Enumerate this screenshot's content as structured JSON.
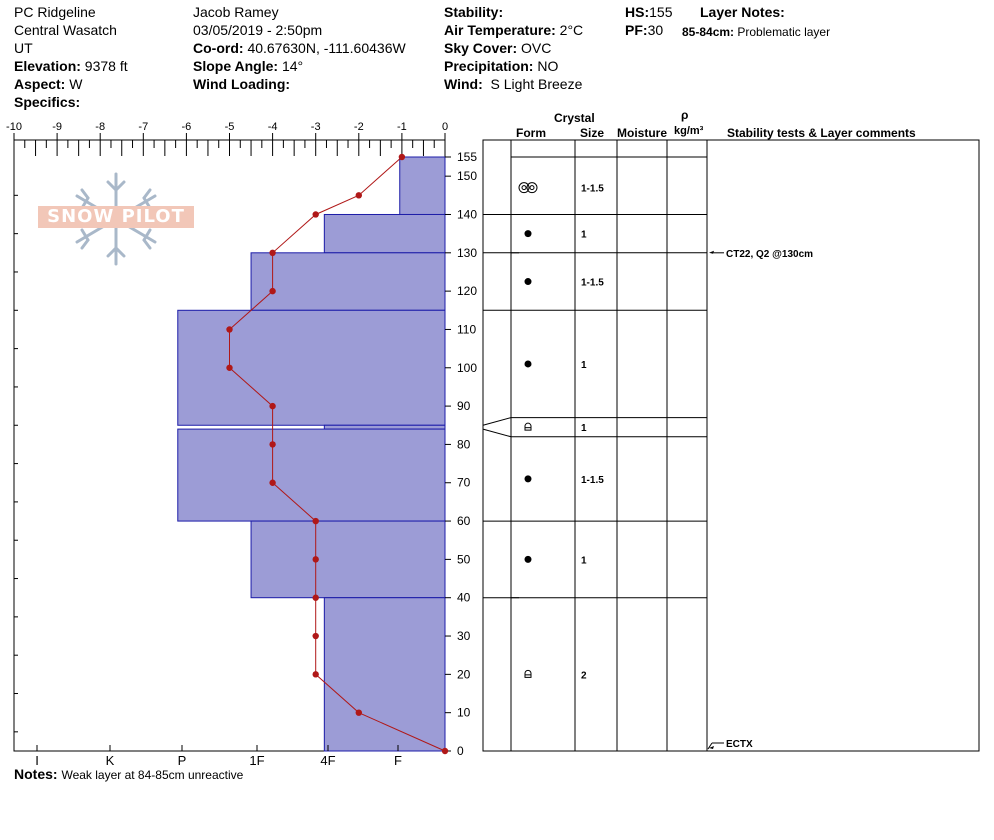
{
  "header": {
    "location": "PC Ridgeline",
    "range": "Central Wasatch",
    "state": "UT",
    "elevation_label": "Elevation:",
    "elevation_value": "9378 ft",
    "aspect_label": "Aspect:",
    "aspect_value": "W",
    "specifics_label": "Specifics:",
    "observer": "Jacob Ramey",
    "datetime": "03/05/2019 - 2:50pm",
    "coord_label": "Co-ord:",
    "coord_value": "40.67630N, -111.60436W",
    "slope_label": "Slope Angle:",
    "slope_value": "14°",
    "wind_loading_label": "Wind Loading:",
    "stability_label": "Stability:",
    "air_temp_label": "Air Temperature:",
    "air_temp_value": "2°C",
    "sky_label": "Sky Cover:",
    "sky_value": "OVC",
    "precip_label": "Precipitation:",
    "precip_value": "NO",
    "wind_label": "Wind:",
    "wind_value": "S Light Breeze",
    "hs_label": "HS:",
    "hs_value": "155",
    "pf_label": "PF:",
    "pf_value": "30",
    "layer_notes_label": "Layer Notes:",
    "layer_note_range": "85-84cm:",
    "layer_note_text": "Problematic layer"
  },
  "logo_text": "SNOW PILOT",
  "notes_label": "Notes:",
  "notes_text": "Weak layer at 84-85cm unreactive",
  "column_headers": {
    "crystal": "Crystal",
    "form": "Form",
    "size": "Size",
    "moisture": "Moisture",
    "rho": "ρ",
    "density_unit": "kg/m³",
    "stability": "Stability tests & Layer comments"
  },
  "colors": {
    "hardness_fill": "#9c9cd6",
    "hardness_stroke": "#1c1ca8",
    "temp_line": "#b01818"
  },
  "chart_data": {
    "type": "snow-profile",
    "temperature_axis": {
      "ticks": [
        -10,
        -9,
        -8,
        -7,
        -6,
        -5,
        -4,
        -3,
        -2,
        -1,
        0
      ],
      "range": [
        -10,
        0
      ]
    },
    "hardness_axis": {
      "labels": [
        "I",
        "K",
        "P",
        "1F",
        "4F",
        "F"
      ]
    },
    "depth_axis": {
      "range": [
        0,
        155
      ],
      "ticks": [
        0,
        10,
        20,
        30,
        40,
        50,
        60,
        70,
        80,
        90,
        100,
        110,
        120,
        130,
        140,
        150,
        155
      ]
    },
    "layers": [
      {
        "top": 155,
        "bottom": 140,
        "hardness_temp_units": -1.05,
        "form": "",
        "size": ""
      },
      {
        "top": 140,
        "bottom": 130,
        "hardness_temp_units": -2.8,
        "form": "rounds",
        "size": "1"
      },
      {
        "top": 130,
        "bottom": 115,
        "hardness_temp_units": -4.5,
        "form": "rounds",
        "size": "1-1.5"
      },
      {
        "top": 115,
        "bottom": 85,
        "hardness_temp_units": -6.2,
        "form": "rounds",
        "size": "1"
      },
      {
        "top": 85,
        "bottom": 84,
        "hardness_temp_units": -2.8,
        "form": "faceted-rounded",
        "size": "1"
      },
      {
        "top": 84,
        "bottom": 60,
        "hardness_temp_units": -6.2,
        "form": "rounds",
        "size": "1-1.5"
      },
      {
        "top": 60,
        "bottom": 40,
        "hardness_temp_units": -4.5,
        "form": "rounds",
        "size": "1"
      },
      {
        "top": 40,
        "bottom": 0,
        "hardness_temp_units": -2.8,
        "form": "faceted-rounded",
        "size": "2"
      }
    ],
    "crystal_rows": [
      {
        "depth": 147,
        "form": "melt-forms",
        "size": "1-1.5"
      },
      {
        "depth": 135,
        "form": "rounds",
        "size": "1"
      },
      {
        "depth": 122.5,
        "form": "rounds",
        "size": "1-1.5"
      },
      {
        "depth": 101,
        "form": "rounds",
        "size": "1"
      },
      {
        "depth": 84.5,
        "form": "faceted-rounded",
        "size": "1"
      },
      {
        "depth": 71,
        "form": "rounds",
        "size": "1-1.5"
      },
      {
        "depth": 50,
        "form": "rounds",
        "size": "1"
      },
      {
        "depth": 20,
        "form": "faceted-rounded",
        "size": "2"
      }
    ],
    "temperature_profile": [
      {
        "depth": 155,
        "temp": -1
      },
      {
        "depth": 145,
        "temp": -2
      },
      {
        "depth": 140,
        "temp": -3
      },
      {
        "depth": 130,
        "temp": -4
      },
      {
        "depth": 120,
        "temp": -4
      },
      {
        "depth": 110,
        "temp": -5
      },
      {
        "depth": 100,
        "temp": -5
      },
      {
        "depth": 90,
        "temp": -4
      },
      {
        "depth": 80,
        "temp": -4
      },
      {
        "depth": 70,
        "temp": -4
      },
      {
        "depth": 60,
        "temp": -3
      },
      {
        "depth": 50,
        "temp": -3
      },
      {
        "depth": 40,
        "temp": -3
      },
      {
        "depth": 30,
        "temp": -3
      },
      {
        "depth": 20,
        "temp": -3
      },
      {
        "depth": 10,
        "temp": -2
      },
      {
        "depth": 0,
        "temp": 0
      }
    ],
    "stability_tests": [
      {
        "depth": 130,
        "text": "CT22, Q2 @130cm"
      },
      {
        "depth": 0,
        "text": "ECTX"
      }
    ]
  }
}
